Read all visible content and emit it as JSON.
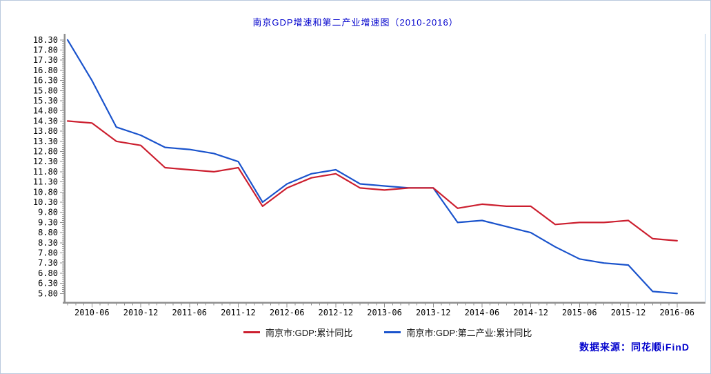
{
  "title": "南京GDP增速和第二产业增速图（2010-2016）",
  "source_label": "数据来源：同花顺iFinD",
  "colors": {
    "title_text": "#0000cc",
    "source_text": "#0000cc",
    "axis": "#8f8f8f",
    "tick": "#8f8f8f",
    "tick_label": "#000000",
    "page_border": "#b9c9dd",
    "plot_right_border": "#b5cce4"
  },
  "chart_data": {
    "type": "line",
    "title": "南京GDP增速和第二产业增速图（2010-2016）",
    "xlabel": "",
    "ylabel": "",
    "grid": false,
    "legend_position": "bottom",
    "ylim": [
      5.55,
      18.55
    ],
    "y_ticks": [
      "18.30",
      "17.80",
      "17.30",
      "16.80",
      "16.30",
      "15.80",
      "15.30",
      "14.80",
      "14.30",
      "13.80",
      "13.30",
      "12.80",
      "12.30",
      "11.80",
      "11.30",
      "10.80",
      "10.30",
      "9.80",
      "9.30",
      "8.80",
      "8.30",
      "7.80",
      "7.30",
      "6.80",
      "6.30",
      "5.80"
    ],
    "x": [
      "2010-03",
      "2010-06",
      "2010-09",
      "2010-12",
      "2011-03",
      "2011-06",
      "2011-09",
      "2011-12",
      "2012-03",
      "2012-06",
      "2012-09",
      "2012-12",
      "2013-03",
      "2013-06",
      "2013-09",
      "2013-12",
      "2014-03",
      "2014-06",
      "2014-09",
      "2014-12",
      "2015-03",
      "2015-06",
      "2015-09",
      "2015-12",
      "2016-03",
      "2016-06"
    ],
    "x_axis_tick_labels": [
      "2010-06",
      "2010-12",
      "2011-06",
      "2011-12",
      "2012-06",
      "2012-12",
      "2013-06",
      "2013-12",
      "2014-06",
      "2014-12",
      "2015-06",
      "2015-12",
      "2016-06"
    ],
    "series": [
      {
        "name": "南京市:GDP:累计同比",
        "color": "#cc1f2f",
        "values": [
          14.3,
          14.2,
          13.3,
          13.1,
          12.0,
          11.9,
          11.8,
          12.0,
          10.1,
          11.0,
          11.5,
          11.7,
          11.0,
          10.9,
          11.0,
          11.0,
          10.0,
          10.2,
          10.1,
          10.1,
          9.2,
          9.3,
          9.3,
          9.4,
          8.5,
          8.4
        ]
      },
      {
        "name": "南京市:GDP:第二产业:累计同比",
        "color": "#1a53cc",
        "values": [
          18.3,
          16.3,
          14.0,
          13.6,
          13.0,
          12.9,
          12.7,
          12.3,
          10.3,
          11.2,
          11.7,
          11.9,
          11.2,
          11.1,
          11.0,
          11.0,
          9.3,
          9.4,
          9.1,
          8.8,
          8.1,
          7.5,
          7.3,
          7.2,
          5.9,
          5.8
        ]
      }
    ]
  }
}
